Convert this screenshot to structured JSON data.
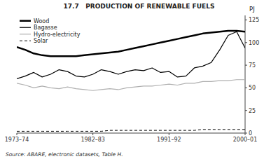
{
  "chart_data": {
    "type": "line",
    "title": "17.7   PRODUCTION OF RENEWABLE FUELS",
    "y_label": "PJ",
    "annotations": [
      "Source: ABARE, electronic datasets, Table H."
    ],
    "categories": [
      "1973–74",
      null,
      null,
      null,
      null,
      null,
      null,
      null,
      null,
      "1982–83",
      null,
      null,
      null,
      null,
      null,
      null,
      null,
      null,
      "1991–92",
      null,
      null,
      null,
      null,
      null,
      null,
      null,
      null,
      "2000–01"
    ],
    "series": [
      {
        "name": "Wood",
        "color": "#000000",
        "line_style": "solid",
        "values": [
          95,
          92,
          88,
          86,
          85,
          85,
          85,
          85,
          86,
          87,
          88,
          89,
          90,
          92,
          94,
          96,
          98,
          100,
          102,
          104,
          106,
          108,
          110,
          111,
          112,
          113,
          113,
          112
        ]
      },
      {
        "name": "Bagasse",
        "color": "#000000",
        "line_style": "solid",
        "values": [
          60,
          63,
          67,
          62,
          65,
          70,
          68,
          63,
          62,
          65,
          70,
          68,
          65,
          68,
          70,
          69,
          72,
          67,
          68,
          62,
          63,
          72,
          74,
          78,
          92,
          108,
          112,
          94
        ]
      },
      {
        "name": "Hydro-electricity",
        "color": "#b0b0b0",
        "line_style": "solid",
        "values": [
          55,
          53,
          50,
          52,
          50,
          49,
          51,
          49,
          48,
          47,
          48,
          49,
          48,
          50,
          51,
          52,
          52,
          53,
          54,
          53,
          55,
          55,
          57,
          57,
          58,
          58,
          59,
          59
        ]
      },
      {
        "name": "Solar",
        "color": "#000000",
        "line_style": "dashed",
        "values": [
          2,
          2,
          2,
          2,
          2,
          2,
          2,
          2,
          2,
          2,
          2,
          3,
          3,
          3,
          3,
          3,
          3,
          3,
          3,
          3,
          3,
          3,
          4,
          4,
          4,
          4,
          4,
          4
        ]
      }
    ],
    "ylim": [
      0,
      130
    ],
    "yticks": [
      0,
      25,
      50,
      75,
      100,
      125
    ],
    "grid": false,
    "legend": "top-left"
  }
}
